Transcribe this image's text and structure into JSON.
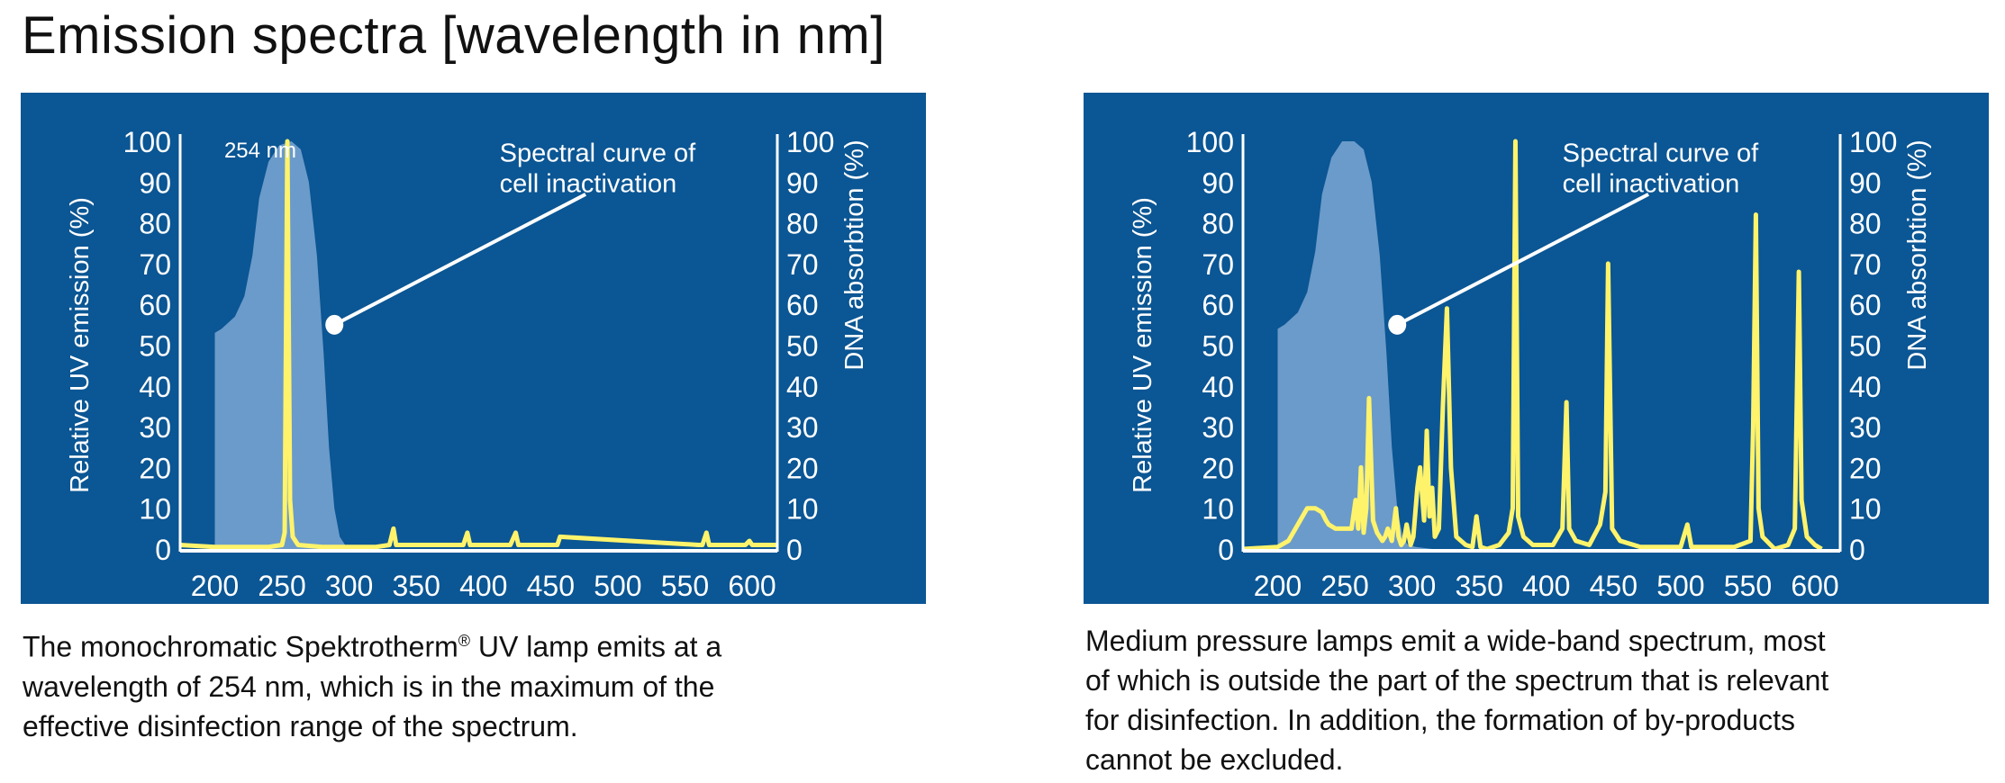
{
  "title": "Emission spectra [wavelength in nm]",
  "colors": {
    "panel": "#0b5694",
    "dna": "#6b9bca",
    "lamp": "#fff36b",
    "text": "#ffffff"
  },
  "chart_data": [
    {
      "type": "line",
      "ylabel": "Relative UV emission (%)",
      "y2label": "DNA absorbtion (%)",
      "xlim": [
        174,
        619
      ],
      "ylim": [
        0,
        100
      ],
      "xticks": [
        "200",
        "250",
        "300",
        "350",
        "400",
        "450",
        "500",
        "550",
        "600"
      ],
      "yticks": [
        "0",
        "10",
        "20",
        "30",
        "40",
        "50",
        "60",
        "70",
        "80",
        "90",
        "100"
      ],
      "annotation": [
        "Spectral curve of",
        "cell inactivation"
      ],
      "peak_label": "254 nm",
      "dna_series": {
        "name": "DNA absorbtion",
        "x": [
          200,
          205,
          215,
          222,
          228,
          233,
          240,
          248,
          257,
          264,
          270,
          276,
          281,
          285,
          289,
          293,
          297,
          303
        ],
        "y": [
          53,
          54,
          57,
          62,
          72,
          86,
          95,
          99,
          100,
          98,
          90,
          72,
          48,
          25,
          10,
          3,
          1,
          0
        ]
      },
      "lamp_series": {
        "name": "Spektrotherm UV lamp emission",
        "x": [
          174,
          200,
          240,
          250,
          252,
          254,
          256,
          258,
          262,
          280,
          320,
          330,
          333,
          335,
          380,
          385,
          388,
          390,
          415,
          420,
          424,
          426,
          450,
          455,
          457,
          560,
          563,
          566,
          568,
          590,
          595,
          598,
          600,
          619
        ],
        "y": [
          1,
          0.5,
          0.5,
          1,
          4,
          100,
          12,
          3,
          1,
          0.5,
          0.5,
          1,
          5,
          1,
          1,
          1,
          4,
          1,
          1,
          1,
          4,
          1,
          1,
          1,
          3,
          1,
          1,
          4,
          1,
          1,
          1,
          2,
          1,
          1
        ]
      }
    },
    {
      "type": "line",
      "ylabel": "Relative UV emission (%)",
      "y2label": "DNA absorbtion (%)",
      "xlim": [
        174,
        619
      ],
      "ylim": [
        0,
        100
      ],
      "xticks": [
        "200",
        "250",
        "300",
        "350",
        "400",
        "450",
        "500",
        "550",
        "600"
      ],
      "yticks": [
        "0",
        "10",
        "20",
        "30",
        "40",
        "50",
        "60",
        "70",
        "80",
        "90",
        "100"
      ],
      "annotation": [
        "Spectral curve of",
        "cell inactivation"
      ],
      "dna_series": {
        "name": "DNA absorbtion",
        "x": [
          200,
          205,
          215,
          222,
          228,
          233,
          240,
          248,
          257,
          264,
          270,
          276,
          281,
          285,
          289,
          293,
          297,
          303,
          315
        ],
        "y": [
          54,
          55,
          58,
          63,
          73,
          87,
          96,
          100,
          100,
          98,
          90,
          72,
          48,
          25,
          10,
          3,
          1,
          0.5,
          0
        ]
      },
      "lamp_series": {
        "name": "Medium pressure lamp emission",
        "x": [
          174,
          200,
          208,
          215,
          222,
          228,
          233,
          236,
          238,
          243,
          248,
          255,
          258,
          260,
          262,
          264,
          266,
          268,
          271,
          274,
          278,
          280,
          282,
          285,
          288,
          290,
          292,
          294,
          296,
          299,
          301,
          304,
          306,
          309,
          311,
          313,
          315,
          317,
          320,
          323,
          326,
          329,
          333,
          340,
          345,
          348,
          351,
          356,
          365,
          372,
          375,
          377,
          379,
          383,
          390,
          405,
          412,
          415,
          417,
          422,
          432,
          440,
          444,
          446,
          449,
          455,
          470,
          500,
          505,
          508,
          515,
          540,
          552,
          554,
          556,
          558,
          561,
          570,
          580,
          585,
          588,
          590,
          594,
          600,
          605
        ],
        "y": [
          0,
          0.5,
          2,
          6,
          10,
          10,
          9,
          7,
          6,
          5,
          5,
          5,
          12,
          5,
          20,
          4,
          10,
          37,
          7,
          4,
          2,
          3,
          5,
          2,
          10,
          3,
          1,
          2,
          6,
          1,
          3,
          15,
          20,
          7,
          29,
          8,
          15,
          3,
          5,
          35,
          59,
          20,
          3,
          1,
          0.5,
          8,
          0.5,
          0,
          1,
          4,
          10,
          100,
          8,
          3,
          1,
          1,
          5,
          36,
          5,
          2,
          1,
          6,
          14,
          70,
          5,
          2,
          0.5,
          0.5,
          6,
          0.5,
          0.5,
          0.5,
          2,
          30,
          82,
          10,
          3,
          0,
          1,
          5,
          68,
          12,
          3,
          1,
          0
        ]
      }
    }
  ],
  "captions": {
    "left": [
      "The monochromatic Spektrotherm",
      "®",
      " UV lamp emits at a",
      "wavelength of 254 nm, which is in the maximum of the",
      "effective disinfection range of the spectrum."
    ],
    "right": [
      "Medium pressure lamps emit a wide-band spectrum, most",
      "of which is outside the part of the spectrum that is relevant",
      "for disinfection. In addition, the formation of by-products",
      "cannot be excluded."
    ]
  }
}
